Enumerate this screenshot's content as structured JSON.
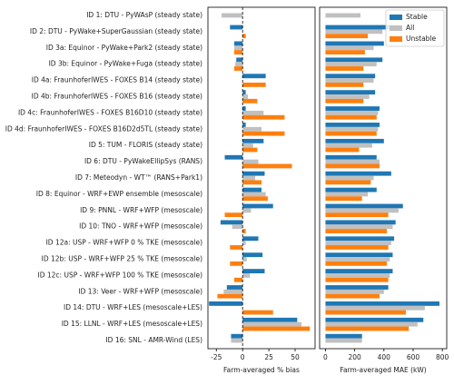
{
  "chart_data": [
    {
      "type": "hbar",
      "xlabel": "Farm-averaged % bias",
      "categories": [
        "ID 1: DTU - PyWAsP (steady state)",
        "ID 2: DTU - PyWake+SuperGaussian (steady state)",
        "ID 3a: Equinor - PyWake+Park2 (steady state)",
        "ID 3b: Equinor - PyWake+Fuga (steady state)",
        "ID 4a: FraunhoferIWES - FOXES B14 (steady state)",
        "ID 4b: FraunhoferIWES - FOXES B16 (steady state)",
        "ID 4c: FraunhoferIWES - FOXES B16D10 (steady state)",
        "ID 4d: FraunhoferIWES - FOXES B16D2d5TL (steady state)",
        "ID 5: TUM - FLORIS (steady state)",
        "ID 6: DTU - PyWakeEllipSys (RANS)",
        "ID 7: Meteodyn - WT™ (RANS+Park1)",
        "ID 8: Equinor - WRF+EWP ensemble (mesoscale)",
        "ID 9: PNNL - WRF+WFP (mesoscale)",
        "ID 10: TNO - WRF+WFP (mesoscale)",
        "ID 12a: USP - WRF+WFP 0 % TKE (mesoscale)",
        "ID 12b: USP - WRF+WFP 25 % TKE (mesoscale)",
        "ID 12c: USP - WRF+WFP 100 % TKE (mesoscale)",
        "ID 13: Veer - WRF+WFP (mesoscale)",
        "ID 14: DTU - WRF+LES (mesoscale+LES)",
        "ID 15: LLNL - WRF+LES (mesoscale+LES)",
        "ID 16: SNL - AMR-Wind (LES)"
      ],
      "series": [
        {
          "color": "#1f77b4",
          "values": [
            null,
            -12,
            -8,
            -6,
            22,
            3,
            3,
            3,
            20,
            -17,
            21,
            18,
            29,
            -21,
            15,
            19,
            21,
            -15,
            -32,
            52,
            -11
          ]
        },
        {
          "color": "#c0c0c0",
          "values": [
            -20,
            0,
            -8,
            -7,
            0,
            5,
            20,
            18,
            10,
            15,
            12,
            22,
            8,
            -10,
            3,
            4,
            7,
            -18,
            null,
            56,
            -11
          ]
        },
        {
          "color": "#ff7f0e",
          "values": [
            null,
            3,
            -8,
            -8,
            22,
            14,
            40,
            40,
            14,
            47,
            18,
            24,
            -17,
            3,
            -12,
            -12,
            -8,
            -24,
            29,
            64,
            null
          ]
        }
      ],
      "xlim": [
        -33,
        69
      ],
      "xticks": [
        -25,
        0,
        25,
        50
      ]
    },
    {
      "type": "hbar",
      "xlabel": "Farm-averaged MAE (kW)",
      "legend": "upper right",
      "series": [
        {
          "name": "Stable",
          "color": "#1f77b4",
          "values": [
            null,
            460,
            400,
            390,
            340,
            340,
            370,
            370,
            400,
            350,
            450,
            350,
            530,
            480,
            470,
            460,
            460,
            430,
            780,
            670,
            250
          ]
        },
        {
          "name": "All",
          "color": "#c0c0c0",
          "values": [
            240,
            390,
            330,
            350,
            330,
            300,
            360,
            360,
            320,
            370,
            330,
            290,
            500,
            460,
            450,
            440,
            440,
            400,
            680,
            630,
            250
          ]
        },
        {
          "name": "Unstable",
          "color": "#ff7f0e",
          "values": [
            null,
            290,
            270,
            260,
            260,
            260,
            350,
            350,
            230,
            370,
            310,
            250,
            430,
            420,
            430,
            420,
            430,
            370,
            550,
            570,
            null
          ]
        }
      ],
      "xlim": [
        -40,
        830
      ],
      "xticks": [
        0,
        200,
        400,
        600,
        800
      ]
    }
  ]
}
